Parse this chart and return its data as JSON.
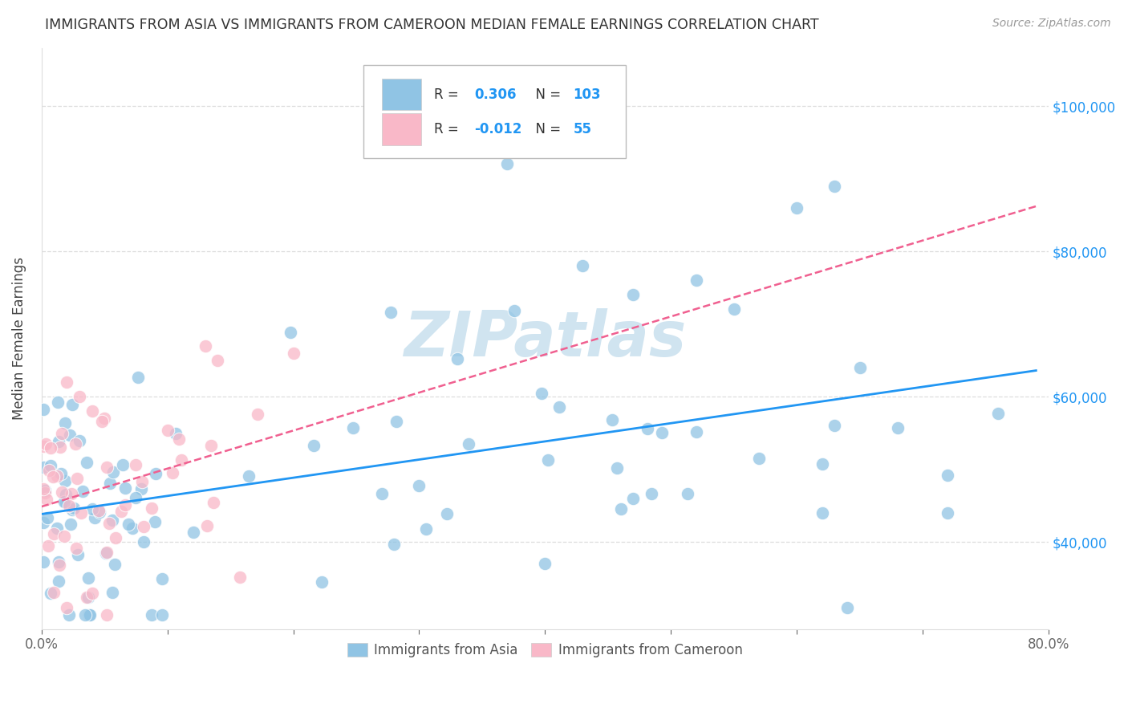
{
  "title": "IMMIGRANTS FROM ASIA VS IMMIGRANTS FROM CAMEROON MEDIAN FEMALE EARNINGS CORRELATION CHART",
  "source": "Source: ZipAtlas.com",
  "ylabel": "Median Female Earnings",
  "legend_label1": "Immigrants from Asia",
  "legend_label2": "Immigrants from Cameroon",
  "R1": 0.306,
  "N1": 103,
  "R2": -0.012,
  "N2": 55,
  "xlim": [
    0.0,
    0.8
  ],
  "ylim": [
    28000,
    108000
  ],
  "xticks": [
    0.0,
    0.1,
    0.2,
    0.3,
    0.4,
    0.5,
    0.6,
    0.7,
    0.8
  ],
  "xtick_labels_show": [
    "0.0%",
    "",
    "",
    "",
    "",
    "",
    "",
    "",
    "80.0%"
  ],
  "ytick_values": [
    40000,
    60000,
    80000,
    100000
  ],
  "ytick_labels": [
    "$40,000",
    "$60,000",
    "$80,000",
    "$100,000"
  ],
  "color_asia": "#90c4e4",
  "color_cameroon": "#f9b8c8",
  "line_color_asia": "#2196F3",
  "line_color_cameroon": "#f06090",
  "background_color": "#ffffff",
  "watermark": "ZIPatlas",
  "watermark_color": "#d0e4f0",
  "grid_color": "#dddddd",
  "title_color": "#333333",
  "source_color": "#999999",
  "tick_color": "#666666"
}
